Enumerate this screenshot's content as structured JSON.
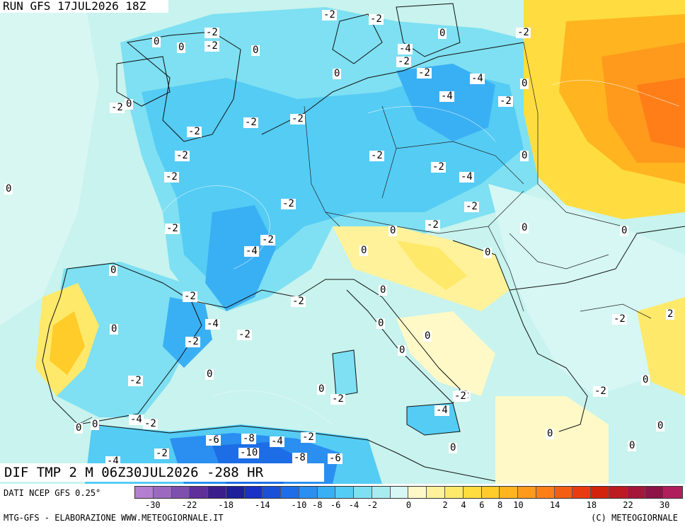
{
  "header": {
    "run_title": "RUN GFS 17JUL2026 18Z",
    "field_title": "DIF TMP 2 M 06Z30JUL2026 -288 HR"
  },
  "footer": {
    "source": "DATI NCEP GFS 0.25°",
    "credit_left": "MTG-GFS - ELABORAZIONE WWW.METEOGIORNALE.IT",
    "credit_right": "(C) METEOGIORNALE"
  },
  "legend": {
    "colors": [
      "#b57fd0",
      "#9b6ac0",
      "#7f4fae",
      "#5f2f9a",
      "#3c1d8c",
      "#1e1f9c",
      "#1b30c4",
      "#1a4fd8",
      "#1d6ee6",
      "#2a8ff0",
      "#3ab0f4",
      "#55ccf4",
      "#7ee0f2",
      "#a8ecf0",
      "#d6f7f4",
      "#fff9c8",
      "#fff29a",
      "#ffe96b",
      "#ffdd40",
      "#ffcc2a",
      "#ffb420",
      "#ff9a1c",
      "#ff7e18",
      "#f45e14",
      "#e83c10",
      "#d4230c",
      "#bd1a22",
      "#a5163a",
      "#8c1446",
      "#b01e5c"
    ],
    "tick_labels": [
      "-30",
      "-22",
      "-18",
      "-14",
      "-10",
      "-8",
      "-6",
      "-4",
      "-2",
      "0",
      "2",
      "4",
      "6",
      "8",
      "10",
      "14",
      "18",
      "22",
      "30"
    ],
    "tick_positions": [
      1,
      3,
      5,
      7,
      9,
      10,
      11,
      12,
      13,
      15,
      17,
      18,
      19,
      20,
      21,
      23,
      25,
      27,
      29
    ]
  },
  "contour_labels": [
    "-2",
    "-2",
    "0",
    "0",
    "-2",
    "-2",
    "0",
    "-4",
    "-2",
    "0",
    "-2",
    "-2",
    "0",
    "-2",
    "-4",
    "-4",
    "-2",
    "0",
    "-2",
    "0",
    "-2",
    "-2",
    "-2",
    "-2",
    "0",
    "-2",
    "0",
    "-2",
    "-2",
    "-4",
    "-2",
    "-2",
    "-4",
    "-2",
    "-2",
    "0",
    "-2",
    "-4",
    "-2",
    "0",
    "0",
    "0",
    "0",
    "0",
    "0",
    "-2",
    "0",
    "-2",
    "2",
    "-2",
    "-4",
    "-2",
    "0",
    "0",
    "0",
    "-2",
    "-2",
    "0",
    "0",
    "-2",
    "-2",
    "0",
    "-4",
    "0",
    "0",
    "-2",
    "-4",
    "-2",
    "-6",
    "-8",
    "-4",
    "-2",
    "-10",
    "-8",
    "-6",
    "0",
    "0",
    "0",
    "0"
  ]
}
